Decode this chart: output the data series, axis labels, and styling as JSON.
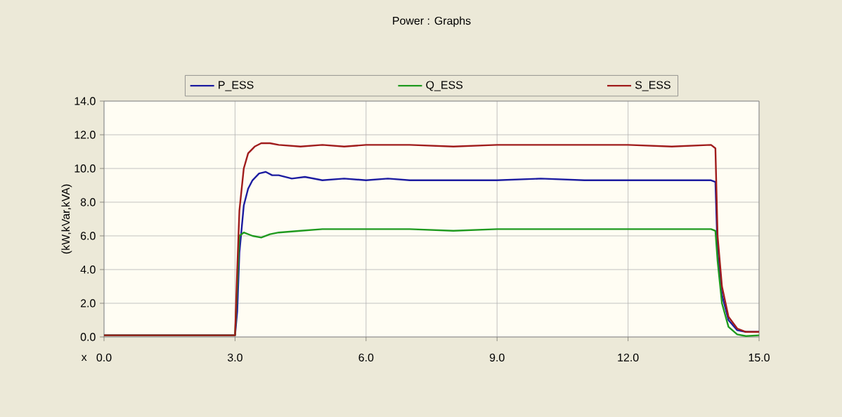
{
  "chart_data": {
    "type": "line",
    "title": "Power : Graphs",
    "xlabel": "x",
    "ylabel": "(kW,kVar,kVA)",
    "xlim": [
      0,
      15
    ],
    "ylim": [
      0,
      14
    ],
    "xticks": [
      {
        "value": 0,
        "label": "0.0"
      },
      {
        "value": 3,
        "label": "3.0"
      },
      {
        "value": 6,
        "label": "6.0"
      },
      {
        "value": 9,
        "label": "9.0"
      },
      {
        "value": 12,
        "label": "12.0"
      },
      {
        "value": 15,
        "label": "15.0"
      }
    ],
    "yticks": [
      {
        "value": 0,
        "label": "0.0"
      },
      {
        "value": 2,
        "label": "2.0"
      },
      {
        "value": 4,
        "label": "4.0"
      },
      {
        "value": 6,
        "label": "6.0"
      },
      {
        "value": 8,
        "label": "8.0"
      },
      {
        "value": 10,
        "label": "10.0"
      },
      {
        "value": 12,
        "label": "12.0"
      },
      {
        "value": 14,
        "label": "14.0"
      }
    ],
    "grid": true,
    "legend": "top",
    "marker": "none",
    "line_style": "solid",
    "series": [
      {
        "name": "P_ESS",
        "color": "#1c1ca0",
        "x": [
          0,
          3.0,
          3.05,
          3.1,
          3.2,
          3.3,
          3.4,
          3.55,
          3.7,
          3.85,
          4.0,
          4.3,
          4.6,
          5.0,
          5.5,
          6.0,
          6.5,
          7.0,
          8.0,
          9.0,
          10.0,
          11.0,
          12.0,
          13.0,
          13.9,
          14.0,
          14.05,
          14.15,
          14.3,
          14.5,
          14.7,
          15.0
        ],
        "values": [
          0.1,
          0.1,
          1.5,
          5.0,
          7.8,
          8.8,
          9.3,
          9.7,
          9.8,
          9.6,
          9.6,
          9.4,
          9.5,
          9.3,
          9.4,
          9.3,
          9.4,
          9.3,
          9.3,
          9.3,
          9.4,
          9.3,
          9.3,
          9.3,
          9.3,
          9.2,
          5.0,
          2.5,
          1.0,
          0.4,
          0.3,
          0.3
        ]
      },
      {
        "name": "Q_ESS",
        "color": "#1f9a1f",
        "x": [
          0,
          3.0,
          3.05,
          3.1,
          3.2,
          3.4,
          3.6,
          3.8,
          4.0,
          4.5,
          5.0,
          5.5,
          6.0,
          7.0,
          8.0,
          9.0,
          10.0,
          11.0,
          12.0,
          13.0,
          13.9,
          14.0,
          14.05,
          14.15,
          14.3,
          14.5,
          14.7,
          15.0
        ],
        "values": [
          0.1,
          0.1,
          3.0,
          6.0,
          6.2,
          6.0,
          5.9,
          6.1,
          6.2,
          6.3,
          6.4,
          6.4,
          6.4,
          6.4,
          6.3,
          6.4,
          6.4,
          6.4,
          6.4,
          6.4,
          6.4,
          6.3,
          4.5,
          2.0,
          0.6,
          0.15,
          0.05,
          0.1
        ]
      },
      {
        "name": "S_ESS",
        "color": "#a01c1c",
        "x": [
          0,
          3.0,
          3.05,
          3.1,
          3.2,
          3.3,
          3.45,
          3.6,
          3.8,
          4.0,
          4.5,
          5.0,
          5.5,
          6.0,
          7.0,
          8.0,
          9.0,
          10.0,
          11.0,
          12.0,
          13.0,
          13.9,
          14.0,
          14.05,
          14.15,
          14.3,
          14.5,
          14.7,
          15.0
        ],
        "values": [
          0.1,
          0.1,
          4.0,
          7.5,
          10.0,
          10.9,
          11.3,
          11.5,
          11.5,
          11.4,
          11.3,
          11.4,
          11.3,
          11.4,
          11.4,
          11.3,
          11.4,
          11.4,
          11.4,
          11.4,
          11.3,
          11.4,
          11.2,
          6.0,
          3.0,
          1.2,
          0.5,
          0.3,
          0.3
        ]
      }
    ]
  }
}
